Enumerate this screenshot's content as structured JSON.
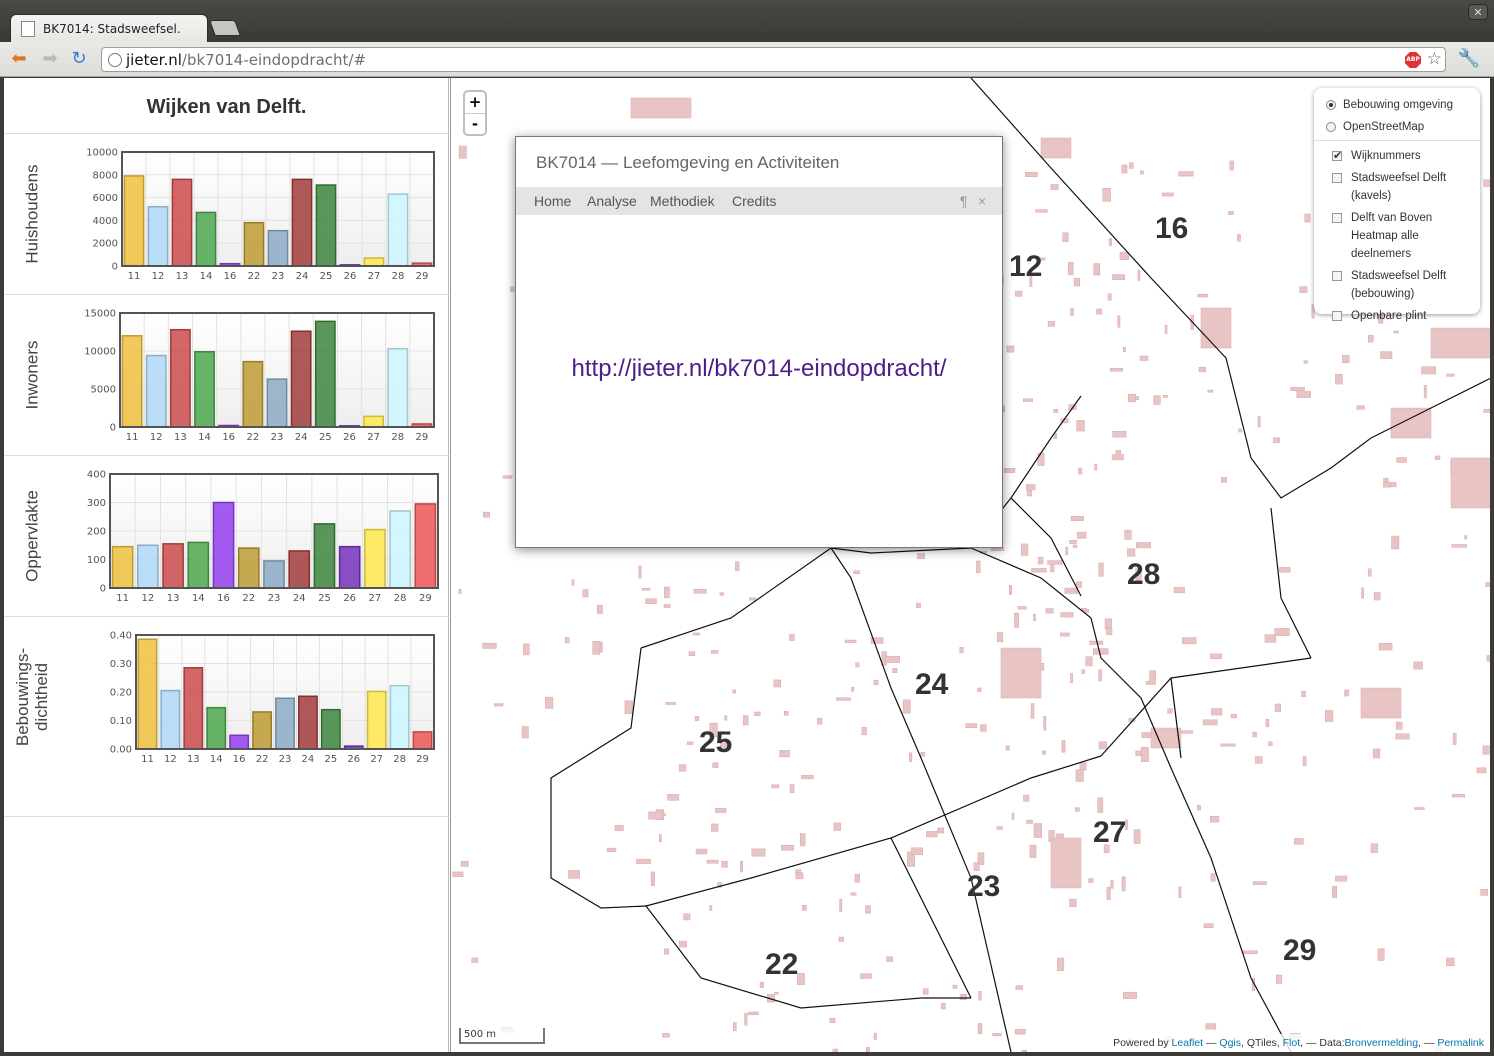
{
  "browser": {
    "tab_title": "BK7014: Stadsweefsel.",
    "url_host": "jieter.nl",
    "url_path": "/bk7014-eindopdracht/#",
    "close_glyph": "✕",
    "back_glyph": "⬅",
    "forward_glyph": "➡",
    "reload_glyph": "↻",
    "abp_label": "ABP",
    "star_glyph": "☆",
    "wrench_glyph": "🔧"
  },
  "sidebar": {
    "title": "Wijken van Delft.",
    "sections": [
      {
        "label": "Huishoudens"
      },
      {
        "label": "Inwoners"
      },
      {
        "label": "Oppervlakte"
      },
      {
        "label": "Bebouwings-\ndichtheid"
      }
    ]
  },
  "chart_data": [
    {
      "type": "bar",
      "ylabel": "Huishoudens",
      "categories": [
        "11",
        "12",
        "13",
        "14",
        "16",
        "22",
        "23",
        "24",
        "25",
        "26",
        "27",
        "28",
        "29"
      ],
      "values": [
        7900,
        5200,
        7600,
        4700,
        200,
        3800,
        3100,
        7600,
        7100,
        100,
        700,
        6300,
        250
      ],
      "ylim": [
        0,
        10000
      ],
      "yticks": [
        "0",
        "2000",
        "4000",
        "6000",
        "8000",
        "10000"
      ],
      "grid": true
    },
    {
      "type": "bar",
      "ylabel": "Inwoners",
      "categories": [
        "11",
        "12",
        "13",
        "14",
        "16",
        "22",
        "23",
        "24",
        "25",
        "26",
        "27",
        "28",
        "29"
      ],
      "values": [
        12000,
        9400,
        12800,
        9900,
        200,
        8600,
        6300,
        12600,
        13900,
        150,
        1400,
        10300,
        400
      ],
      "ylim": [
        0,
        15000
      ],
      "yticks": [
        "0",
        "5000",
        "10000",
        "15000"
      ],
      "grid": true
    },
    {
      "type": "bar",
      "ylabel": "Oppervlakte",
      "categories": [
        "11",
        "12",
        "13",
        "14",
        "16",
        "22",
        "23",
        "24",
        "25",
        "26",
        "27",
        "28",
        "29"
      ],
      "values": [
        145,
        150,
        155,
        160,
        300,
        140,
        95,
        130,
        225,
        145,
        205,
        270,
        295
      ],
      "ylim": [
        0,
        400
      ],
      "yticks": [
        "0",
        "100",
        "200",
        "300",
        "400"
      ],
      "grid": true
    },
    {
      "type": "bar",
      "ylabel": "Bebouwings-dichtheid",
      "categories": [
        "11",
        "12",
        "13",
        "14",
        "16",
        "22",
        "23",
        "24",
        "25",
        "26",
        "27",
        "28",
        "29"
      ],
      "values": [
        0.385,
        0.205,
        0.285,
        0.145,
        0.048,
        0.13,
        0.178,
        0.185,
        0.138,
        0.01,
        0.202,
        0.222,
        0.06
      ],
      "ylim": [
        0,
        0.4
      ],
      "yticks": [
        "0.00",
        "0.10",
        "0.20",
        "0.30",
        "0.40"
      ],
      "grid": true
    }
  ],
  "bar_colors": [
    "#edc240",
    "#afd8f8",
    "#cb4b4b",
    "#4da74d",
    "#9440ed",
    "#bd9b33",
    "#8cacc6",
    "#a23c3c",
    "#3d853d",
    "#7633bd",
    "#ffe84c",
    "#cdf7ff",
    "#ef5656"
  ],
  "map": {
    "zoom_in": "+",
    "zoom_out": "-",
    "layers": {
      "base": [
        {
          "label": "Bebouwing omgeving",
          "selected": true
        },
        {
          "label": "OpenStreetMap",
          "selected": false
        }
      ],
      "overlays": [
        {
          "label": "Wijknummers",
          "checked": true
        },
        {
          "label": "Stadsweefsel Delft (kavels)",
          "checked": false
        },
        {
          "label": "Delft van Boven Heatmap alle deelnemers",
          "checked": false
        },
        {
          "label": "Stadsweefsel Delft (bebouwing)",
          "checked": false
        },
        {
          "label": "Openbare plint",
          "checked": false
        }
      ]
    },
    "popup": {
      "title": "BK7014 — Leefomgeving en Activiteiten",
      "nav": [
        "Home",
        "Analyse",
        "Methodiek",
        "Credits"
      ],
      "pilcrow": "¶",
      "close": "×",
      "link": "http://jieter.nl/bk7014-eindopdracht/"
    },
    "scale": "500 m",
    "attribution": {
      "powered": "Powered by",
      "leaflet": "Leaflet",
      "sep1": " — ",
      "qgis": "Qgis",
      "qtiles": ", QTiles, ",
      "flot": "Flot",
      "data": ", — Data:",
      "bron": "Bronvermelding",
      "sep2": ", — ",
      "permalink": "Permalink"
    },
    "wijken": [
      "12",
      "16",
      "28",
      "24",
      "25",
      "27",
      "23",
      "22",
      "29"
    ],
    "building_color": "#e8c4c4"
  }
}
